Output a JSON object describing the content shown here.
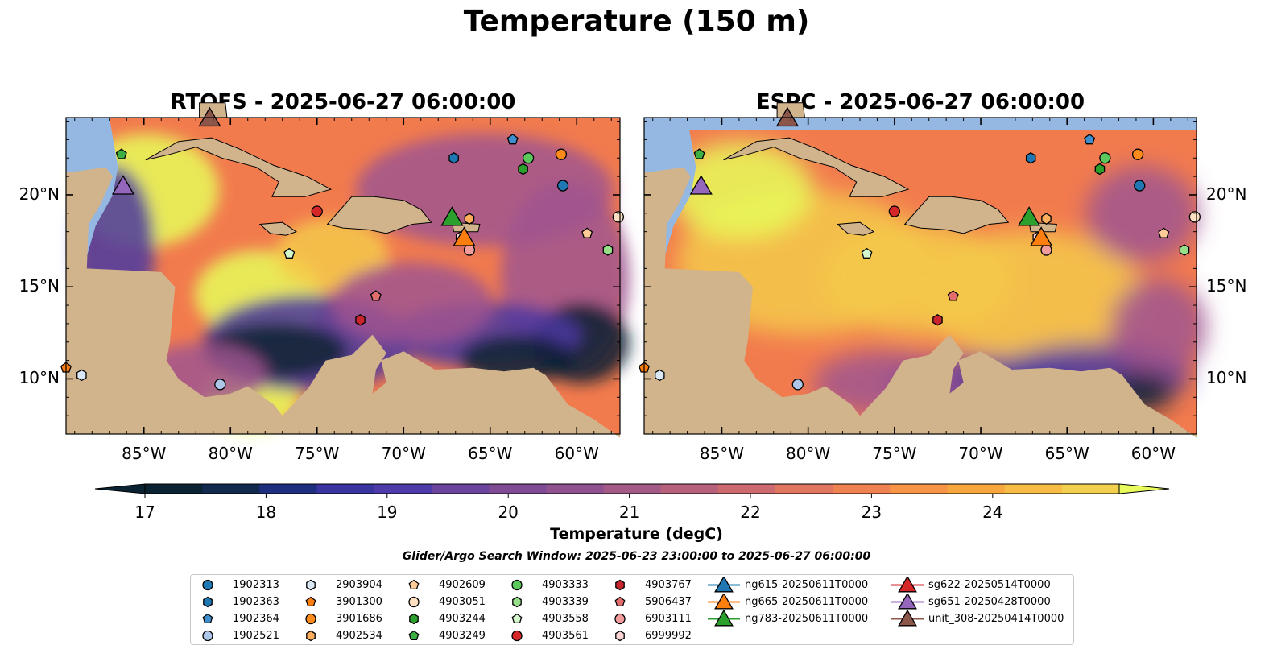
{
  "suptitle": "Temperature (150 m)",
  "panels": [
    {
      "title": "RTOFS - 2025-06-27 06:00:00"
    },
    {
      "title": "ESPC - 2025-06-27 06:00:00"
    }
  ],
  "axes": {
    "lon_ticks": [
      "85°W",
      "80°W",
      "75°W",
      "70°W",
      "65°W",
      "60°W"
    ],
    "lat_ticks": [
      "20°N",
      "15°N",
      "10°N"
    ]
  },
  "colorbar": {
    "label": "Temperature (degC)",
    "ticks": [
      "17",
      "18",
      "19",
      "20",
      "21",
      "22",
      "23",
      "24"
    ],
    "range": [
      16.75,
      24.5
    ],
    "colors": {
      "low": "#0b2233",
      "mid_low": "#4b3aa0",
      "mid": "#a0558f",
      "mid_high": "#f27b4e",
      "high": "#f5c94a",
      "top": "#e8fb5a"
    }
  },
  "search_window": "Glider/Argo Search Window: 2025-06-23 23:00:00 to 2025-06-27 06:00:00",
  "legend": [
    {
      "label": "1902313",
      "shape": "circle",
      "color": "#1f77b4"
    },
    {
      "label": "1902363",
      "shape": "hexagon",
      "color": "#1f77b4"
    },
    {
      "label": "1902364",
      "shape": "pentagon",
      "color": "#3f8fce"
    },
    {
      "label": "1902521",
      "shape": "circle",
      "color": "#aec7e8"
    },
    {
      "label": "2903904",
      "shape": "hexagon",
      "color": "#dbe9f6"
    },
    {
      "label": "3901300",
      "shape": "pentagon",
      "color": "#ff7f0e"
    },
    {
      "label": "3901686",
      "shape": "circle",
      "color": "#ff8c1a"
    },
    {
      "label": "4902534",
      "shape": "hexagon",
      "color": "#ffae5c"
    },
    {
      "label": "4902609",
      "shape": "pentagon",
      "color": "#ffcc99"
    },
    {
      "label": "4903051",
      "shape": "circle",
      "color": "#ffe0c2"
    },
    {
      "label": "4903244",
      "shape": "hexagon",
      "color": "#2ca02c"
    },
    {
      "label": "4903249",
      "shape": "pentagon",
      "color": "#3cb043"
    },
    {
      "label": "4903333",
      "shape": "circle",
      "color": "#5cc95c"
    },
    {
      "label": "4903339",
      "shape": "hexagon",
      "color": "#98df8a"
    },
    {
      "label": "4903558",
      "shape": "pentagon",
      "color": "#d4f7cc"
    },
    {
      "label": "4903561",
      "shape": "circle",
      "color": "#d62728"
    },
    {
      "label": "4903767",
      "shape": "hexagon",
      "color": "#c9252f"
    },
    {
      "label": "5906437",
      "shape": "pentagon",
      "color": "#e36d6d"
    },
    {
      "label": "6903111",
      "shape": "circle",
      "color": "#f29c9c"
    },
    {
      "label": "6999992",
      "shape": "hexagon",
      "color": "#fdd5d5"
    },
    {
      "label": "ng615-20250611T0000",
      "shape": "triangle",
      "color": "#1f77b4"
    },
    {
      "label": "ng665-20250611T0000",
      "shape": "triangle",
      "color": "#ff7f0e"
    },
    {
      "label": "ng783-20250611T0000",
      "shape": "triangle",
      "color": "#2ca02c"
    },
    {
      "label": "sg622-20250514T0000",
      "shape": "triangle",
      "color": "#d62728"
    },
    {
      "label": "sg651-20250428T0000",
      "shape": "triangle",
      "color": "#9467bd"
    },
    {
      "label": "unit_308-20250414T0000",
      "shape": "triangle",
      "color": "#8c564b"
    }
  ],
  "chart_data": {
    "type": "heatmap",
    "variable": "Temperature (degC) at 150 m",
    "lon_range": [
      -89.5,
      -57.5
    ],
    "lat_range": [
      7,
      24.2
    ],
    "observations": [
      {
        "id": "1902313",
        "lon": -60.8,
        "lat": 20.5
      },
      {
        "id": "1902363",
        "lon": -67.1,
        "lat": 22.0
      },
      {
        "id": "1902364",
        "lon": -63.7,
        "lat": 23.0
      },
      {
        "id": "1902521",
        "lon": -80.6,
        "lat": 9.7
      },
      {
        "id": "2903904",
        "lon": -88.6,
        "lat": 10.2
      },
      {
        "id": "3901300",
        "lon": -89.5,
        "lat": 10.6
      },
      {
        "id": "3901686",
        "lon": -60.9,
        "lat": 22.2
      },
      {
        "id": "4902534",
        "lon": -66.2,
        "lat": 18.7
      },
      {
        "id": "4902609",
        "lon": -59.4,
        "lat": 17.9
      },
      {
        "id": "4903051",
        "lon": -57.6,
        "lat": 18.8
      },
      {
        "id": "4903244",
        "lon": -63.1,
        "lat": 21.4
      },
      {
        "id": "4903249",
        "lon": -86.3,
        "lat": 22.2
      },
      {
        "id": "4903333",
        "lon": -62.8,
        "lat": 22.0
      },
      {
        "id": "4903339",
        "lon": -58.2,
        "lat": 17.0
      },
      {
        "id": "4903558",
        "lon": -76.6,
        "lat": 16.8
      },
      {
        "id": "4903561",
        "lon": -75.0,
        "lat": 19.1
      },
      {
        "id": "4903767",
        "lon": -72.5,
        "lat": 13.2
      },
      {
        "id": "5906437",
        "lon": -71.6,
        "lat": 14.5
      },
      {
        "id": "6903111",
        "lon": -66.2,
        "lat": 17.0
      },
      {
        "id": "6999992",
        "lon": -66.7,
        "lat": 17.7
      }
    ],
    "gliders": [
      {
        "id": "ng665-20250611T0000",
        "lon": -66.5,
        "lat": 17.7
      },
      {
        "id": "ng783-20250611T0000",
        "lon": -67.2,
        "lat": 18.8
      },
      {
        "id": "sg651-20250428T0000",
        "lon": -86.2,
        "lat": 20.5
      },
      {
        "id": "unit_308-20250414T0000",
        "lon": -81.2,
        "lat": 24.2
      }
    ]
  }
}
